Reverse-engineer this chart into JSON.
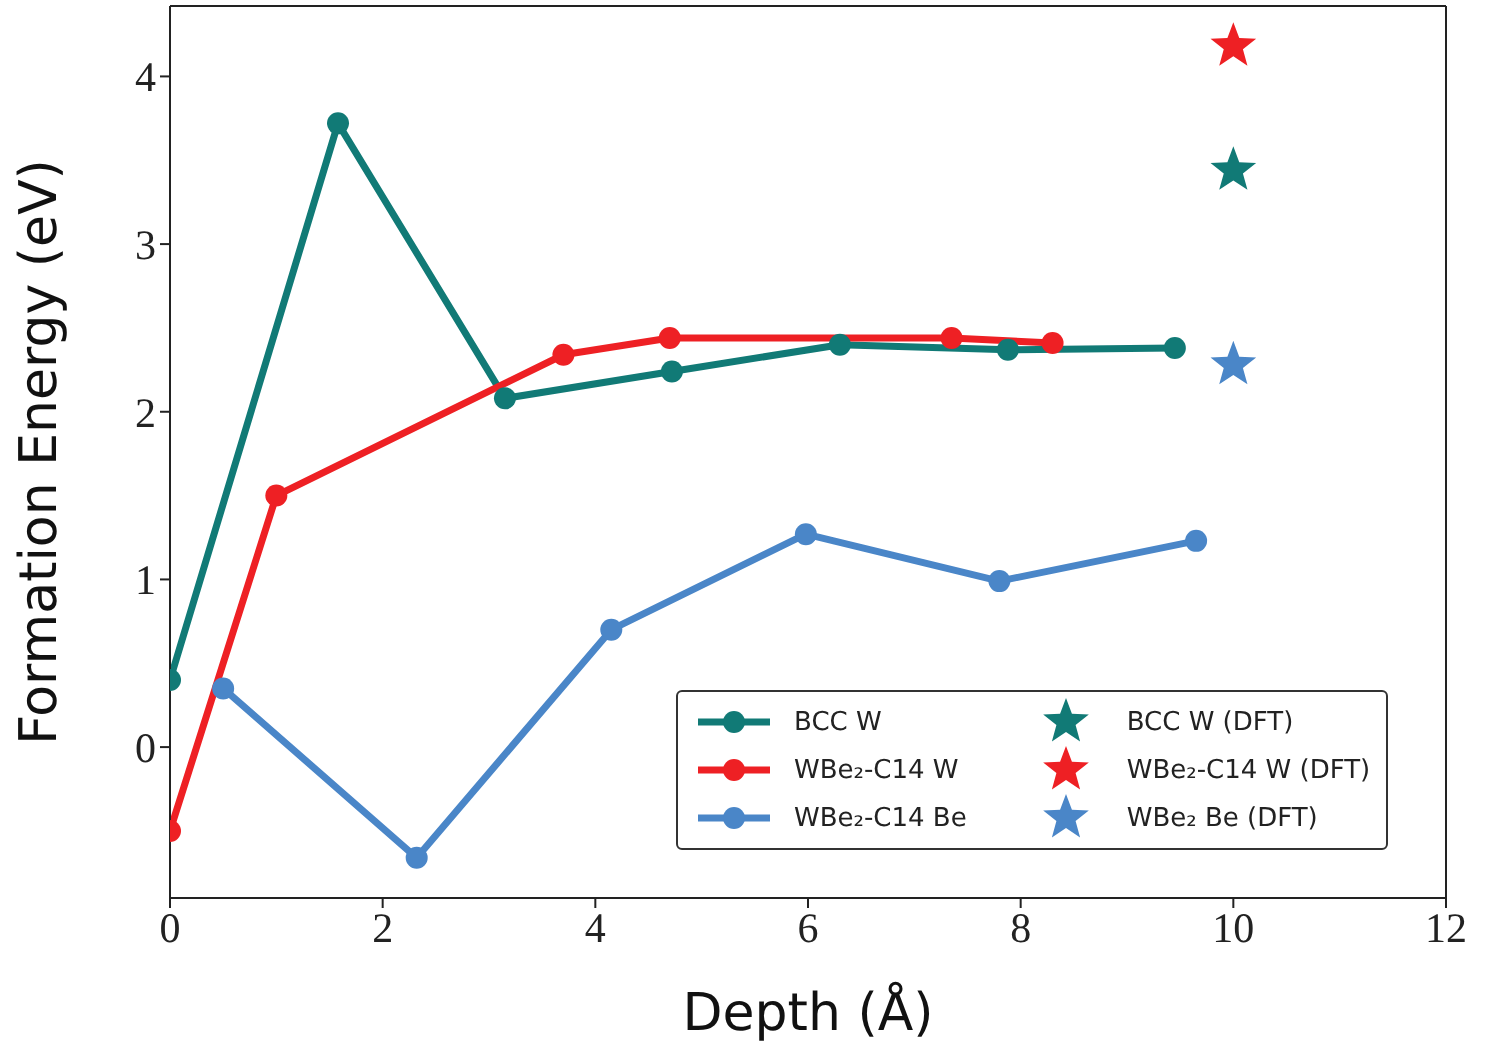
{
  "chart_data": {
    "type": "line",
    "xlabel": "Depth (Å)",
    "ylabel": "Formation Energy (eV)",
    "xlim": [
      0,
      12
    ],
    "xticks": [
      0,
      2,
      4,
      6,
      8,
      10,
      12
    ],
    "ylim": [
      -0.9,
      4.42
    ],
    "yticks": [
      0,
      1,
      2,
      3,
      4
    ],
    "marker": "circle",
    "line_style": "solid",
    "legend": "bottom right",
    "grid": false,
    "series": [
      {
        "name": "BCC W",
        "color": "#117a76",
        "x": [
          0,
          1.58,
          3.15,
          4.72,
          6.3,
          7.88,
          9.45
        ],
        "values": [
          0.4,
          3.72,
          2.08,
          2.24,
          2.4,
          2.37,
          2.38
        ]
      },
      {
        "name": "WBe₂-C14 W",
        "color": "#ee2024",
        "x": [
          0,
          1.0,
          3.7,
          4.7,
          7.35,
          8.3
        ],
        "values": [
          -0.5,
          1.5,
          2.34,
          2.44,
          2.44,
          2.41
        ]
      },
      {
        "name": "WBe₂-C14 Be",
        "color": "#4a86c8",
        "x": [
          0.5,
          2.32,
          4.15,
          5.98,
          7.8,
          9.65
        ],
        "values": [
          0.35,
          -0.66,
          0.7,
          1.27,
          0.99,
          1.23
        ]
      },
      {
        "name": "BCC W (DFT)",
        "type": "scatter",
        "marker": "star",
        "color": "#117a76",
        "x": [
          10
        ],
        "values": [
          3.44
        ]
      },
      {
        "name": "WBe₂-C14 W (DFT)",
        "type": "scatter",
        "marker": "star",
        "color": "#ee2024",
        "x": [
          10
        ],
        "values": [
          4.18
        ]
      },
      {
        "name": "WBe₂ Be (DFT)",
        "type": "scatter",
        "marker": "star",
        "color": "#4a86c8",
        "x": [
          10
        ],
        "values": [
          2.28
        ]
      }
    ]
  }
}
